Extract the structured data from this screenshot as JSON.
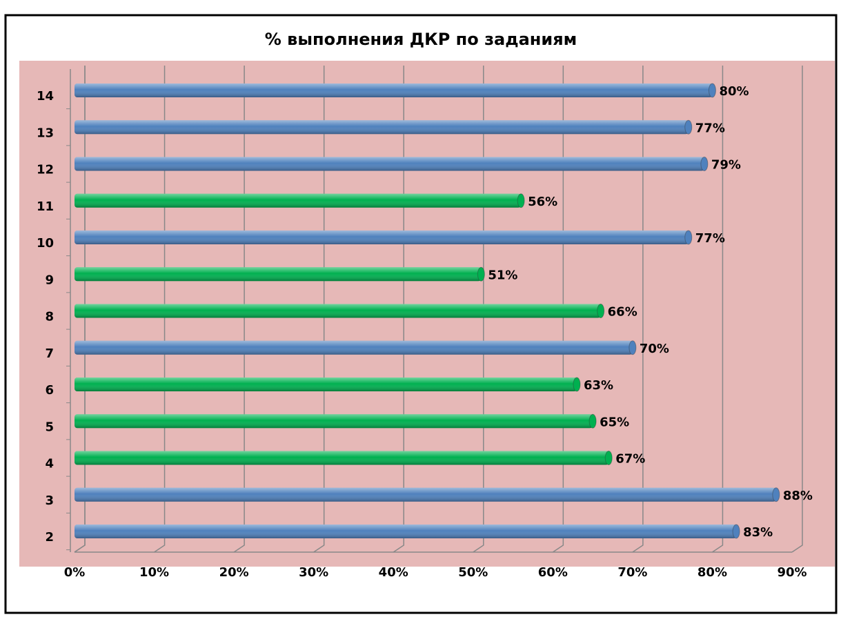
{
  "chart_data": {
    "type": "bar",
    "orientation": "horizontal",
    "title": "% выполнения  ДКР по заданиям",
    "categories": [
      "2",
      "3",
      "4",
      "5",
      "6",
      "7",
      "8",
      "9",
      "10",
      "11",
      "12",
      "13",
      "14"
    ],
    "values": [
      83,
      88,
      67,
      65,
      63,
      70,
      66,
      51,
      77,
      56,
      79,
      77,
      80
    ],
    "value_labels": [
      "83%",
      "88%",
      "67%",
      "65%",
      "63%",
      "70%",
      "66%",
      "51%",
      "77%",
      "56%",
      "79%",
      "77%",
      "80%"
    ],
    "colors": [
      "#4f81bd",
      "#4f81bd",
      "#00b050",
      "#00b050",
      "#00b050",
      "#4f81bd",
      "#00b050",
      "#00b050",
      "#4f81bd",
      "#00b050",
      "#4f81bd",
      "#4f81bd",
      "#4f81bd"
    ],
    "xlim": [
      0,
      90
    ],
    "xticks": [
      {
        "value": 0,
        "label": "0%"
      },
      {
        "value": 10,
        "label": "10%"
      },
      {
        "value": 20,
        "label": "20%"
      },
      {
        "value": 30,
        "label": "30%"
      },
      {
        "value": 40,
        "label": "40%"
      },
      {
        "value": 50,
        "label": "50%"
      },
      {
        "value": 60,
        "label": "60%"
      },
      {
        "value": 70,
        "label": "70%"
      },
      {
        "value": 80,
        "label": "80%"
      },
      {
        "value": 90,
        "label": "90%"
      }
    ],
    "grid": true
  }
}
